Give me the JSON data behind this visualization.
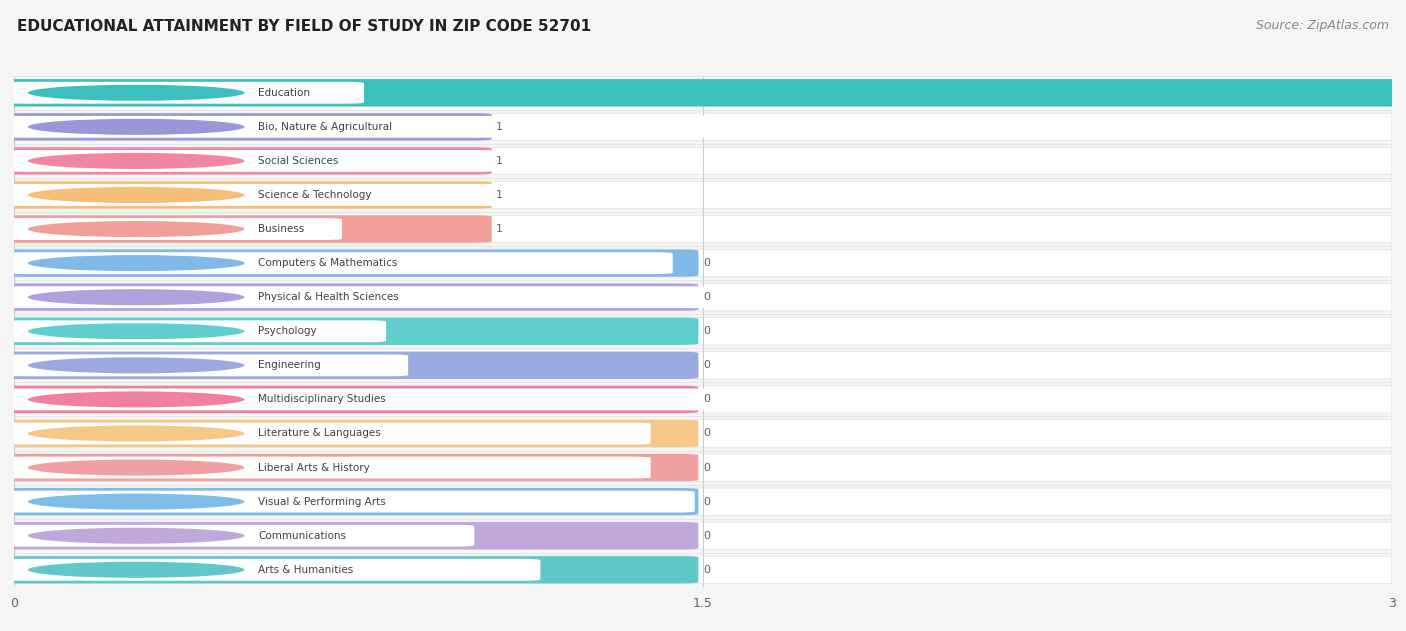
{
  "title": "EDUCATIONAL ATTAINMENT BY FIELD OF STUDY IN ZIP CODE 52701",
  "source": "Source: ZipAtlas.com",
  "categories": [
    "Education",
    "Bio, Nature & Agricultural",
    "Social Sciences",
    "Science & Technology",
    "Business",
    "Computers & Mathematics",
    "Physical & Health Sciences",
    "Psychology",
    "Engineering",
    "Multidisciplinary Studies",
    "Literature & Languages",
    "Liberal Arts & History",
    "Visual & Performing Arts",
    "Communications",
    "Arts & Humanities"
  ],
  "values": [
    3,
    1,
    1,
    1,
    1,
    0,
    0,
    0,
    0,
    0,
    0,
    0,
    0,
    0,
    0
  ],
  "bar_colors": [
    "#3BBFBF",
    "#9898D8",
    "#F285A0",
    "#F5BF78",
    "#F0A098",
    "#80B8E8",
    "#B0A0DC",
    "#60CECE",
    "#9AAAE0",
    "#F080A0",
    "#F5C888",
    "#F0A0A0",
    "#80BCE8",
    "#C0A8DC",
    "#60C8C8"
  ],
  "bar_colors_light": [
    "#3BBFBF",
    "#9898D8",
    "#F285A0",
    "#F5BF78",
    "#F0A098",
    "#80B8E8",
    "#B0A0DC",
    "#60CECE",
    "#9AAAE0",
    "#F080A0",
    "#F5C888",
    "#F0A0A0",
    "#80BCE8",
    "#C0A8DC",
    "#60C8C8"
  ],
  "xlim": [
    0,
    3
  ],
  "xticks": [
    0,
    1.5,
    3
  ],
  "background_color": "#f5f5f5",
  "row_bg_color": "#ffffff",
  "title_fontsize": 11,
  "source_fontsize": 9,
  "zero_bar_width": 1.45
}
